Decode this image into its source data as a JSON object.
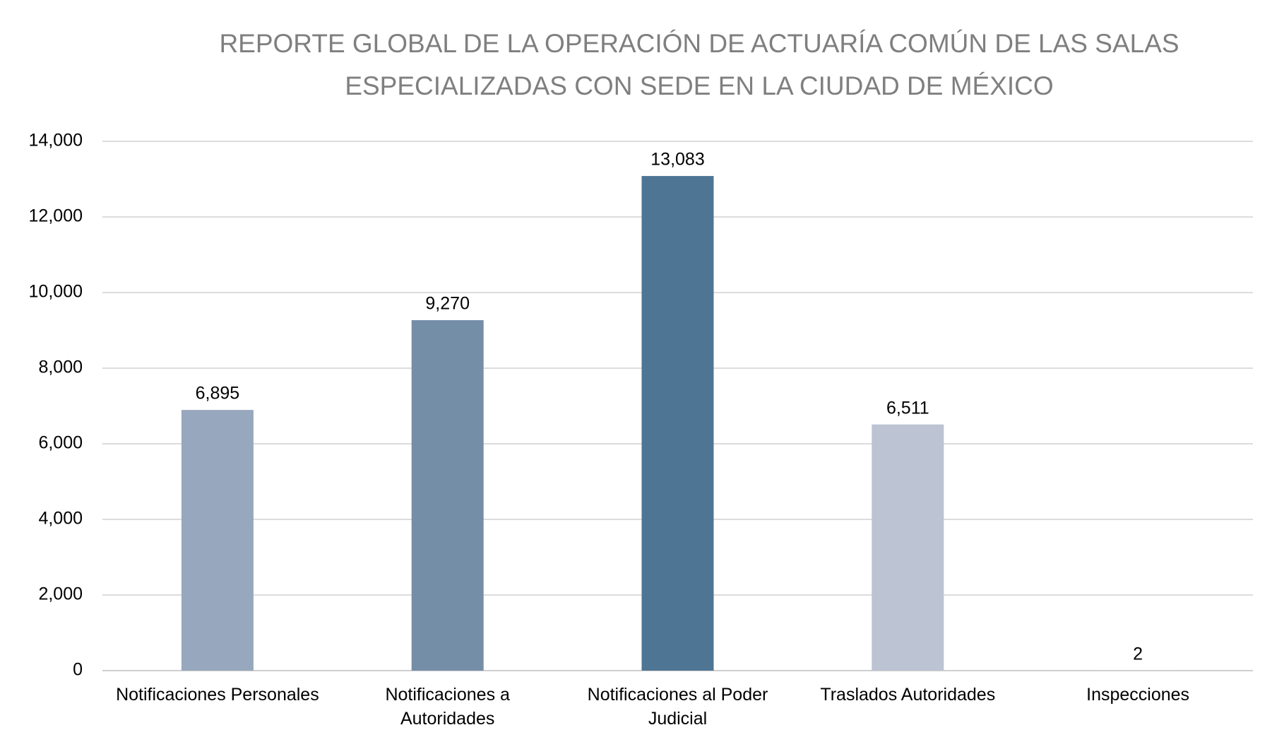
{
  "chart_data": {
    "type": "bar",
    "title": "REPORTE GLOBAL DE LA OPERACIÓN DE ACTUARÍA COMÚN DE LAS SALAS ESPECIALIZADAS CON SEDE EN LA CIUDAD DE MÉXICO",
    "categories": [
      "Notificaciones Personales",
      "Notificaciones a Autoridades",
      "Notificaciones al Poder Judicial",
      "Traslados Autoridades",
      "Inspecciones"
    ],
    "values": [
      6895,
      9270,
      13083,
      6511,
      2
    ],
    "value_labels": [
      "6,895",
      "9,270",
      "13,083",
      "6,511",
      "2"
    ],
    "colors": [
      "#97a7bd",
      "#758ea8",
      "#4f7594",
      "#bcc3d2",
      "#c9d1de"
    ],
    "ylim": [
      0,
      14000
    ],
    "yticks": [
      0,
      {
        "value": 2000,
        "label": "2,000"
      },
      {
        "value": 4000,
        "label": "4,000"
      },
      {
        "value": 6000,
        "label": "6,000"
      },
      {
        "value": 8000,
        "label": "8,000"
      },
      {
        "value": 10000,
        "label": "10,000"
      },
      {
        "value": 12000,
        "label": "12,000"
      },
      {
        "value": 14000,
        "label": "14,000"
      }
    ],
    "grid": true
  }
}
